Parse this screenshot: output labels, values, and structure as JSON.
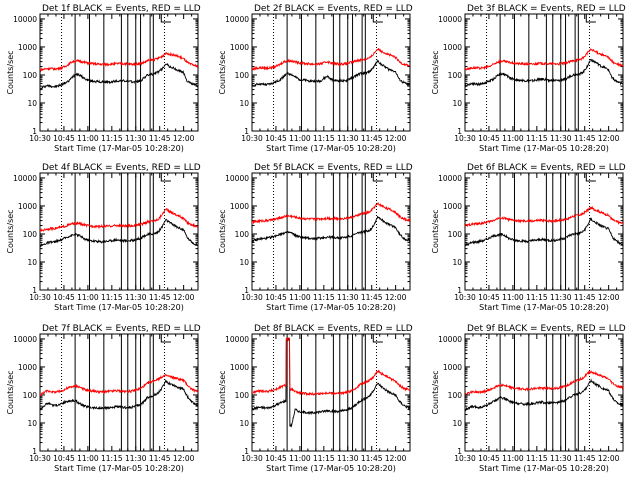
{
  "chart_data": [
    {
      "type": "line",
      "title": "Det 1f BLACK = Events, RED = LLD",
      "series": [
        {
          "name": "Events",
          "color": "#000000",
          "values": [
            30,
            38,
            42,
            40,
            38,
            40,
            45,
            52,
            60,
            85,
            110,
            100,
            80,
            68,
            62,
            60,
            58,
            56,
            56,
            55,
            56,
            60,
            62,
            62,
            60,
            58,
            56,
            60,
            60,
            80,
            100,
            105,
            110,
            130,
            160,
            260,
            200,
            180,
            150,
            140,
            120,
            60,
            50,
            45,
            40
          ]
        },
        {
          "name": "LLD",
          "color": "#ff0000",
          "values": [
            150,
            160,
            170,
            170,
            165,
            170,
            180,
            200,
            240,
            300,
            320,
            310,
            290,
            270,
            260,
            250,
            245,
            240,
            240,
            240,
            245,
            250,
            255,
            255,
            250,
            245,
            240,
            250,
            255,
            280,
            320,
            340,
            360,
            400,
            460,
            600,
            560,
            520,
            480,
            430,
            380,
            280,
            240,
            220,
            200
          ]
        }
      ]
    },
    {
      "type": "line",
      "title": "Det 2f BLACK = Events, RED = LLD",
      "series": [
        {
          "name": "Events",
          "color": "#000000",
          "values": [
            40,
            45,
            48,
            46,
            45,
            48,
            52,
            60,
            70,
            95,
            110,
            105,
            85,
            72,
            66,
            64,
            62,
            60,
            60,
            60,
            75,
            90,
            70,
            64,
            62,
            62,
            60,
            72,
            80,
            95,
            110,
            115,
            120,
            140,
            200,
            320,
            240,
            200,
            160,
            150,
            130,
            70,
            55,
            48,
            45
          ]
        },
        {
          "name": "LLD",
          "color": "#ff0000",
          "values": [
            160,
            170,
            180,
            178,
            175,
            180,
            190,
            210,
            250,
            300,
            320,
            315,
            295,
            275,
            265,
            255,
            250,
            245,
            245,
            248,
            270,
            300,
            270,
            255,
            250,
            250,
            248,
            270,
            290,
            320,
            340,
            360,
            380,
            420,
            600,
            860,
            720,
            620,
            540,
            480,
            420,
            300,
            250,
            230,
            210
          ]
        }
      ]
    },
    {
      "type": "line",
      "title": "Det 3f BLACK = Events, RED = LLD",
      "series": [
        {
          "name": "Events",
          "color": "#000000",
          "values": [
            42,
            46,
            50,
            48,
            46,
            50,
            55,
            62,
            72,
            95,
            110,
            105,
            88,
            74,
            68,
            66,
            64,
            62,
            62,
            62,
            66,
            72,
            70,
            66,
            64,
            64,
            62,
            68,
            72,
            85,
            100,
            105,
            110,
            130,
            200,
            360,
            300,
            250,
            200,
            180,
            150,
            80,
            60,
            52,
            48
          ]
        },
        {
          "name": "LLD",
          "color": "#ff0000",
          "values": [
            160,
            170,
            180,
            178,
            175,
            180,
            190,
            205,
            240,
            290,
            310,
            305,
            285,
            270,
            260,
            252,
            248,
            245,
            245,
            246,
            252,
            260,
            258,
            252,
            250,
            250,
            248,
            258,
            265,
            290,
            320,
            340,
            360,
            410,
            600,
            800,
            700,
            620,
            540,
            480,
            420,
            300,
            250,
            230,
            210
          ]
        }
      ]
    },
    {
      "type": "line",
      "title": "Det 4f BLACK = Events, RED = LLD",
      "series": [
        {
          "name": "Events",
          "color": "#000000",
          "values": [
            38,
            42,
            48,
            50,
            52,
            56,
            62,
            72,
            82,
            90,
            95,
            88,
            70,
            62,
            58,
            56,
            54,
            52,
            54,
            56,
            58,
            62,
            60,
            58,
            56,
            58,
            60,
            66,
            70,
            85,
            95,
            100,
            105,
            120,
            180,
            320,
            260,
            220,
            180,
            160,
            140,
            75,
            55,
            45,
            40
          ]
        },
        {
          "name": "LLD",
          "color": "#ff0000",
          "values": [
            130,
            140,
            150,
            155,
            160,
            165,
            175,
            190,
            210,
            230,
            240,
            235,
            215,
            200,
            195,
            190,
            188,
            186,
            188,
            190,
            194,
            200,
            198,
            195,
            192,
            195,
            198,
            210,
            215,
            240,
            270,
            290,
            300,
            340,
            500,
            760,
            640,
            560,
            480,
            420,
            360,
            260,
            220,
            200,
            180
          ]
        }
      ]
    },
    {
      "type": "line",
      "title": "Det 5f BLACK = Events, RED = LLD",
      "series": [
        {
          "name": "Events",
          "color": "#000000",
          "values": [
            55,
            60,
            66,
            68,
            70,
            74,
            80,
            90,
            100,
            110,
            115,
            108,
            90,
            80,
            75,
            72,
            70,
            68,
            70,
            72,
            74,
            78,
            76,
            74,
            72,
            74,
            76,
            82,
            88,
            100,
            115,
            120,
            125,
            140,
            220,
            420,
            330,
            270,
            220,
            200,
            170,
            100,
            75,
            62,
            58
          ]
        },
        {
          "name": "LLD",
          "color": "#ff0000",
          "values": [
            260,
            275,
            290,
            295,
            300,
            310,
            325,
            345,
            380,
            420,
            440,
            430,
            400,
            375,
            360,
            350,
            345,
            340,
            345,
            350,
            355,
            365,
            360,
            355,
            350,
            355,
            360,
            380,
            395,
            440,
            500,
            540,
            570,
            630,
            900,
            1200,
            1050,
            900,
            780,
            690,
            600,
            430,
            360,
            320,
            300
          ]
        }
      ]
    },
    {
      "type": "line",
      "title": "Det 6f BLACK = Events, RED = LLD",
      "series": [
        {
          "name": "Events",
          "color": "#000000",
          "values": [
            40,
            44,
            50,
            52,
            54,
            58,
            64,
            74,
            84,
            92,
            96,
            90,
            72,
            64,
            60,
            58,
            56,
            54,
            56,
            58,
            60,
            64,
            62,
            60,
            58,
            60,
            62,
            68,
            72,
            88,
            98,
            102,
            108,
            125,
            190,
            340,
            270,
            230,
            190,
            170,
            150,
            80,
            58,
            48,
            42
          ]
        },
        {
          "name": "LLD",
          "color": "#ff0000",
          "values": [
            200,
            210,
            225,
            230,
            235,
            245,
            260,
            280,
            310,
            350,
            370,
            360,
            330,
            310,
            300,
            292,
            288,
            284,
            288,
            292,
            298,
            308,
            304,
            298,
            294,
            298,
            302,
            320,
            330,
            370,
            420,
            450,
            480,
            540,
            700,
            860,
            760,
            660,
            580,
            520,
            460,
            330,
            280,
            255,
            240
          ]
        }
      ]
    },
    {
      "type": "line",
      "title": "Det 7f BLACK = Events, RED = LLD",
      "series": [
        {
          "name": "Events",
          "color": "#000000",
          "values": [
            30,
            40,
            50,
            48,
            42,
            44,
            48,
            56,
            60,
            62,
            60,
            50,
            42,
            38,
            36,
            35,
            34,
            33,
            34,
            35,
            36,
            38,
            37,
            36,
            35,
            36,
            38,
            42,
            46,
            60,
            80,
            90,
            100,
            120,
            180,
            300,
            260,
            230,
            200,
            180,
            160,
            90,
            60,
            48,
            40
          ]
        },
        {
          "name": "LLD",
          "color": "#ff0000",
          "values": [
            100,
            120,
            140,
            135,
            125,
            130,
            140,
            160,
            180,
            200,
            210,
            195,
            165,
            150,
            140,
            136,
            132,
            128,
            130,
            133,
            136,
            142,
            140,
            136,
            134,
            136,
            140,
            155,
            170,
            210,
            260,
            300,
            330,
            380,
            440,
            500,
            460,
            420,
            390,
            360,
            330,
            230,
            170,
            145,
            130
          ]
        }
      ]
    },
    {
      "type": "line",
      "title": "Det 8f BLACK = Events, RED = LLD",
      "series": [
        {
          "name": "Events",
          "color": "#000000",
          "values": [
            30,
            34,
            36,
            35,
            34,
            36,
            40,
            46,
            52,
            60,
            10000,
            8,
            30,
            26,
            24,
            24,
            23,
            23,
            24,
            25,
            26,
            28,
            27,
            26,
            26,
            27,
            28,
            32,
            36,
            46,
            60,
            70,
            80,
            100,
            160,
            260,
            200,
            160,
            130,
            110,
            100,
            60,
            45,
            38,
            34
          ]
        },
        {
          "name": "LLD",
          "color": "#ff0000",
          "values": [
            120,
            130,
            140,
            138,
            135,
            140,
            150,
            165,
            190,
            220,
            10000,
            160,
            130,
            120,
            115,
            112,
            110,
            108,
            110,
            112,
            115,
            120,
            118,
            115,
            114,
            116,
            120,
            130,
            145,
            180,
            230,
            270,
            300,
            350,
            480,
            700,
            580,
            500,
            420,
            360,
            310,
            220,
            180,
            160,
            150
          ]
        }
      ]
    },
    {
      "type": "line",
      "title": "Det 9f BLACK = Events, RED = LLD",
      "series": [
        {
          "name": "Events",
          "color": "#000000",
          "values": [
            30,
            34,
            38,
            37,
            36,
            38,
            42,
            50,
            58,
            70,
            80,
            76,
            62,
            55,
            52,
            50,
            48,
            47,
            48,
            50,
            52,
            55,
            54,
            52,
            51,
            52,
            54,
            60,
            65,
            80,
            95,
            105,
            115,
            135,
            200,
            320,
            260,
            220,
            180,
            160,
            140,
            80,
            58,
            48,
            42
          ]
        },
        {
          "name": "LLD",
          "color": "#ff0000",
          "values": [
            110,
            120,
            130,
            128,
            125,
            130,
            140,
            155,
            180,
            210,
            230,
            220,
            195,
            180,
            172,
            168,
            165,
            162,
            164,
            168,
            172,
            178,
            176,
            172,
            170,
            172,
            176,
            190,
            205,
            240,
            290,
            330,
            360,
            420,
            560,
            680,
            600,
            530,
            470,
            420,
            370,
            270,
            220,
            195,
            180
          ]
        }
      ]
    }
  ],
  "axes": {
    "ylabel": "Counts/sec",
    "xlabel": "Start Time (17-Mar-05 10:28:20)",
    "x_ticks": [
      "10:30",
      "10:45",
      "11:00",
      "11:15",
      "11:30",
      "11:45",
      "12:00"
    ],
    "x_tick_minutes": [
      0,
      15,
      30,
      45,
      60,
      75,
      90
    ],
    "x_range_minutes": [
      0,
      99
    ],
    "y_ticks": [
      "1",
      "10",
      "100",
      "1000",
      "10000"
    ],
    "y_tick_values": [
      1,
      10,
      100,
      1000,
      10000
    ],
    "y_range": [
      1,
      15000
    ],
    "y_scale": "log",
    "x_data_start_minutes": 0,
    "x_data_step_minutes": 2.25,
    "solid_lines_minutes": [
      22,
      31,
      40,
      51,
      55,
      60,
      63,
      69,
      71
    ],
    "dotted_lines_minutes": [
      13.5,
      78
    ],
    "bracket_minutes": [
      76,
      82
    ]
  }
}
